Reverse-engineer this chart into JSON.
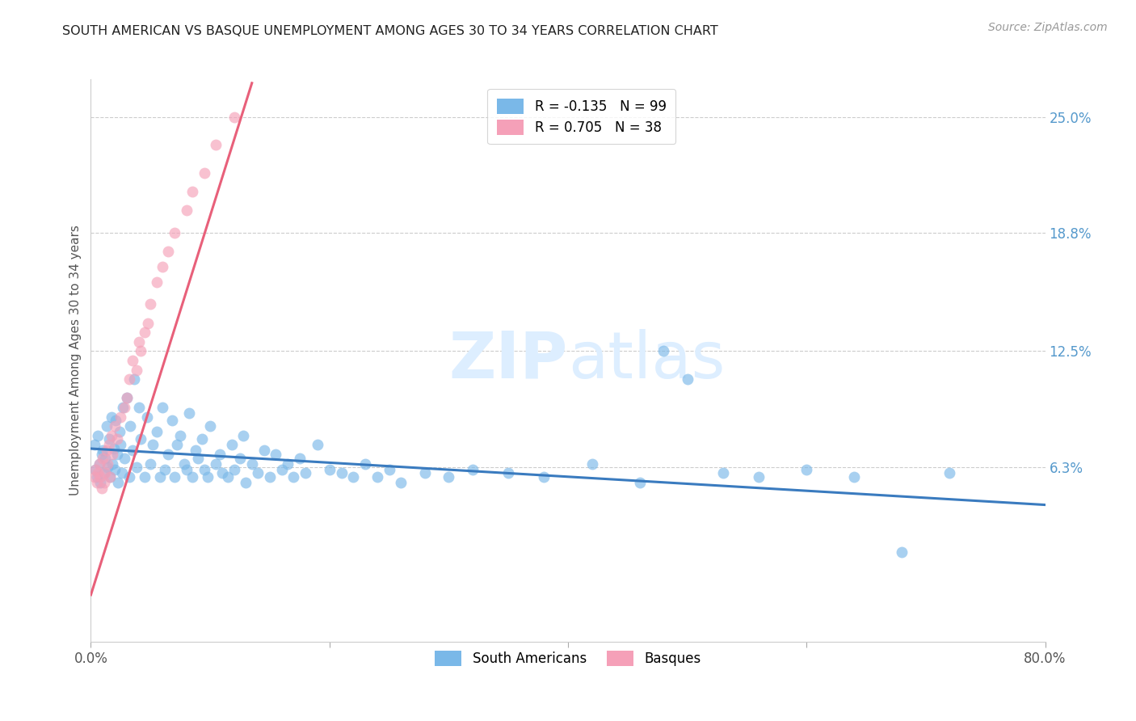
{
  "title": "SOUTH AMERICAN VS BASQUE UNEMPLOYMENT AMONG AGES 30 TO 34 YEARS CORRELATION CHART",
  "source": "Source: ZipAtlas.com",
  "ylabel": "Unemployment Among Ages 30 to 34 years",
  "ytick_labels": [
    "25.0%",
    "18.8%",
    "12.5%",
    "6.3%"
  ],
  "ytick_values": [
    0.25,
    0.188,
    0.125,
    0.063
  ],
  "xmin": 0.0,
  "xmax": 0.8,
  "ymin": -0.03,
  "ymax": 0.27,
  "legend_blue_r": "-0.135",
  "legend_blue_n": "99",
  "legend_pink_r": "0.705",
  "legend_pink_n": "38",
  "blue_color": "#7ab8e8",
  "pink_color": "#f5a0b8",
  "blue_line_color": "#3a7bbf",
  "pink_line_color": "#e8607a",
  "grid_color": "#cccccc",
  "title_color": "#222222",
  "source_color": "#999999",
  "axis_label_color": "#555555",
  "right_tick_color": "#5599cc",
  "watermark_color": "#ddeeff",
  "south_american_x": [
    0.003,
    0.004,
    0.005,
    0.006,
    0.007,
    0.008,
    0.009,
    0.01,
    0.011,
    0.012,
    0.013,
    0.014,
    0.015,
    0.016,
    0.017,
    0.018,
    0.019,
    0.02,
    0.021,
    0.022,
    0.023,
    0.024,
    0.025,
    0.026,
    0.027,
    0.028,
    0.03,
    0.032,
    0.033,
    0.035,
    0.036,
    0.038,
    0.04,
    0.042,
    0.045,
    0.047,
    0.05,
    0.052,
    0.055,
    0.058,
    0.06,
    0.062,
    0.065,
    0.068,
    0.07,
    0.072,
    0.075,
    0.078,
    0.08,
    0.082,
    0.085,
    0.088,
    0.09,
    0.093,
    0.095,
    0.098,
    0.1,
    0.105,
    0.108,
    0.11,
    0.115,
    0.118,
    0.12,
    0.125,
    0.128,
    0.13,
    0.135,
    0.14,
    0.145,
    0.15,
    0.155,
    0.16,
    0.165,
    0.17,
    0.175,
    0.18,
    0.19,
    0.2,
    0.21,
    0.22,
    0.23,
    0.24,
    0.25,
    0.26,
    0.28,
    0.3,
    0.32,
    0.35,
    0.38,
    0.42,
    0.46,
    0.48,
    0.5,
    0.53,
    0.56,
    0.6,
    0.64,
    0.68,
    0.72
  ],
  "south_american_y": [
    0.075,
    0.062,
    0.058,
    0.08,
    0.065,
    0.055,
    0.07,
    0.072,
    0.06,
    0.068,
    0.085,
    0.063,
    0.078,
    0.058,
    0.09,
    0.065,
    0.073,
    0.062,
    0.088,
    0.07,
    0.055,
    0.082,
    0.075,
    0.06,
    0.095,
    0.068,
    0.1,
    0.058,
    0.085,
    0.072,
    0.11,
    0.063,
    0.095,
    0.078,
    0.058,
    0.09,
    0.065,
    0.075,
    0.082,
    0.058,
    0.095,
    0.062,
    0.07,
    0.088,
    0.058,
    0.075,
    0.08,
    0.065,
    0.062,
    0.092,
    0.058,
    0.072,
    0.068,
    0.078,
    0.062,
    0.058,
    0.085,
    0.065,
    0.07,
    0.06,
    0.058,
    0.075,
    0.062,
    0.068,
    0.08,
    0.055,
    0.065,
    0.06,
    0.072,
    0.058,
    0.07,
    0.062,
    0.065,
    0.058,
    0.068,
    0.06,
    0.075,
    0.062,
    0.06,
    0.058,
    0.065,
    0.058,
    0.062,
    0.055,
    0.06,
    0.058,
    0.062,
    0.06,
    0.058,
    0.065,
    0.055,
    0.125,
    0.11,
    0.06,
    0.058,
    0.062,
    0.058,
    0.018,
    0.06
  ],
  "basque_x": [
    0.003,
    0.004,
    0.005,
    0.006,
    0.007,
    0.008,
    0.009,
    0.01,
    0.011,
    0.012,
    0.013,
    0.014,
    0.015,
    0.016,
    0.017,
    0.018,
    0.02,
    0.022,
    0.025,
    0.028,
    0.03,
    0.032,
    0.035,
    0.038,
    0.04,
    0.042,
    0.045,
    0.048,
    0.05,
    0.055,
    0.06,
    0.065,
    0.07,
    0.08,
    0.085,
    0.095,
    0.105,
    0.12
  ],
  "basque_y": [
    0.058,
    0.062,
    0.055,
    0.06,
    0.065,
    0.058,
    0.052,
    0.068,
    0.055,
    0.06,
    0.072,
    0.065,
    0.075,
    0.058,
    0.08,
    0.07,
    0.085,
    0.078,
    0.09,
    0.095,
    0.1,
    0.11,
    0.12,
    0.115,
    0.13,
    0.125,
    0.135,
    0.14,
    0.15,
    0.162,
    0.17,
    0.178,
    0.188,
    0.2,
    0.21,
    0.22,
    0.235,
    0.25
  ],
  "blue_line_x": [
    0.0,
    0.8
  ],
  "blue_line_y": [
    0.073,
    0.043
  ],
  "pink_line_x": [
    0.0,
    0.135
  ],
  "pink_line_y": [
    -0.005,
    0.268
  ]
}
